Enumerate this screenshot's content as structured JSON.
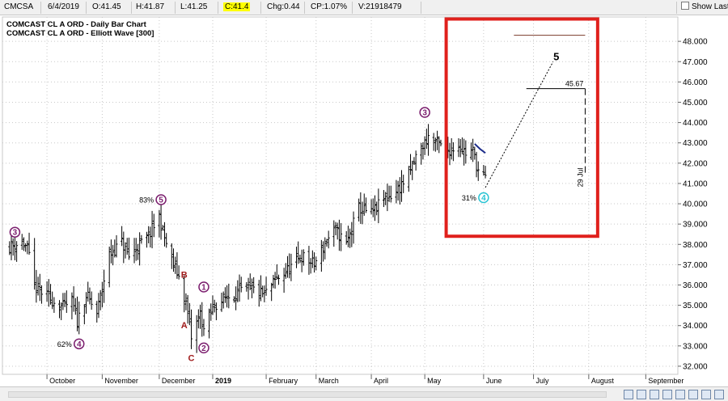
{
  "header": {
    "symbol": "CMCSA",
    "date": "6/4/2019",
    "open": "O:41.45",
    "high": "H:41.87",
    "low": "L:41.25",
    "close": "C:41.4",
    "change": "Chg:0.44",
    "change_pct": "CP:1.07%",
    "volume": "V:21918479",
    "show_last_label": "Show Last"
  },
  "chart_data": {
    "type": "bar",
    "title": "COMCAST CL A ORD - Daily Bar Chart",
    "subtitle": "COMCAST CL A ORD - Elliott Wave [300]",
    "y_ticks": [
      "32.000",
      "33.000",
      "34.000",
      "35.000",
      "36.000",
      "37.000",
      "38.000",
      "39.000",
      "40.000",
      "41.000",
      "42.000",
      "43.000",
      "44.000",
      "45.000",
      "46.000",
      "47.000",
      "48.000"
    ],
    "ylim": [
      31.6,
      49.2
    ],
    "x_ticks": [
      {
        "label": "October",
        "date": "2018-10-01"
      },
      {
        "label": "November",
        "date": "2018-11-01"
      },
      {
        "label": "December",
        "date": "2018-12-03"
      },
      {
        "label": "2019",
        "date": "2019-01-02"
      },
      {
        "label": "February",
        "date": "2019-02-01"
      },
      {
        "label": "March",
        "date": "2019-03-01"
      },
      {
        "label": "April",
        "date": "2019-04-01"
      },
      {
        "label": "May",
        "date": "2019-05-01"
      },
      {
        "label": "June",
        "date": "2019-06-03"
      },
      {
        "label": "July",
        "date": "2019-07-01"
      },
      {
        "label": "August",
        "date": "2019-08-01"
      },
      {
        "label": "September",
        "date": "2019-09-02"
      }
    ],
    "price_path": [
      [
        "2018-09-10",
        37.9
      ],
      [
        "2018-09-17",
        38.1
      ],
      [
        "2018-09-20",
        37.8
      ],
      [
        "2018-09-24",
        35.9
      ],
      [
        "2018-10-03",
        35.3
      ],
      [
        "2018-10-10",
        34.9
      ],
      [
        "2018-10-15",
        35.2
      ],
      [
        "2018-10-18",
        34.2
      ],
      [
        "2018-10-23",
        35.5
      ],
      [
        "2018-10-29",
        34.6
      ],
      [
        "2018-11-05",
        37.5
      ],
      [
        "2018-11-12",
        38.1
      ],
      [
        "2018-11-16",
        37.4
      ],
      [
        "2018-11-21",
        37.9
      ],
      [
        "2018-11-27",
        38.4
      ],
      [
        "2018-12-03",
        39.4
      ],
      [
        "2018-12-05",
        38.6
      ],
      [
        "2018-12-10",
        37.2
      ],
      [
        "2018-12-14",
        36.4
      ],
      [
        "2018-12-18",
        35.1
      ],
      [
        "2018-12-21",
        33.4
      ],
      [
        "2018-12-26",
        34.6
      ],
      [
        "2018-12-28",
        33.8
      ],
      [
        "2019-01-03",
        35.0
      ],
      [
        "2019-01-10",
        35.4
      ],
      [
        "2019-01-17",
        35.7
      ],
      [
        "2019-01-24",
        35.8
      ],
      [
        "2019-01-31",
        35.5
      ],
      [
        "2019-02-07",
        36.3
      ],
      [
        "2019-02-14",
        36.8
      ],
      [
        "2019-02-21",
        37.4
      ],
      [
        "2019-02-28",
        37.0
      ],
      [
        "2019-03-07",
        38.2
      ],
      [
        "2019-03-12",
        38.7
      ],
      [
        "2019-03-18",
        38.0
      ],
      [
        "2019-03-25",
        39.8
      ],
      [
        "2019-04-01",
        39.5
      ],
      [
        "2019-04-08",
        40.2
      ],
      [
        "2019-04-15",
        40.6
      ],
      [
        "2019-04-22",
        41.4
      ],
      [
        "2019-04-26",
        42.3
      ],
      [
        "2019-05-03",
        43.3
      ],
      [
        "2019-05-08",
        43.0
      ],
      [
        "2019-05-13",
        42.6
      ],
      [
        "2019-05-20",
        42.9
      ],
      [
        "2019-05-24",
        42.5
      ],
      [
        "2019-05-28",
        42.6
      ],
      [
        "2019-06-01",
        41.3
      ],
      [
        "2019-06-04",
        41.4
      ]
    ],
    "last_bar": {
      "date": "2019-06-04",
      "open": 41.45,
      "high": 41.87,
      "low": 41.25,
      "close": 41.4
    },
    "overlay_curve": [
      [
        "2019-05-29",
        42.95
      ],
      [
        "2019-06-01",
        42.7
      ],
      [
        "2019-06-04",
        42.5
      ]
    ],
    "waves": [
      {
        "label": "3",
        "date": "2018-09-13",
        "price": 38.6,
        "circled": true,
        "color": "#7b1e6e"
      },
      {
        "label": "4",
        "date": "2018-10-19",
        "price": 33.1,
        "circled": true,
        "color": "#7b1e6e",
        "pct": "62%"
      },
      {
        "label": "5",
        "date": "2018-12-04",
        "price": 40.2,
        "circled": true,
        "color": "#7b1e6e",
        "pct": "83%"
      },
      {
        "label": "B",
        "date": "2018-12-17",
        "price": 36.5,
        "circled": false,
        "color": "#a01c1c"
      },
      {
        "label": "A",
        "date": "2018-12-17",
        "price": 34.0,
        "circled": false,
        "color": "#a01c1c"
      },
      {
        "label": "C",
        "date": "2018-12-21",
        "price": 32.4,
        "circled": false,
        "color": "#a01c1c"
      },
      {
        "label": "1",
        "date": "2018-12-28",
        "price": 35.9,
        "circled": true,
        "color": "#7b1e6e"
      },
      {
        "label": "2",
        "date": "2018-12-28",
        "price": 32.9,
        "circled": true,
        "color": "#7b1e6e"
      },
      {
        "label": "3",
        "date": "2019-05-01",
        "price": 44.5,
        "circled": true,
        "color": "#7b1e6e"
      },
      {
        "label": "4",
        "date": "2019-06-03",
        "price": 40.3,
        "circled": true,
        "color": "#29c4d4",
        "pct": "31%"
      }
    ],
    "projection": {
      "from": [
        "2019-06-04",
        40.8
      ],
      "to": [
        "2019-07-12",
        47.0
      ],
      "label": "5",
      "target_value": "45.67",
      "target_date_label": "29 Jul",
      "upper_level": 48.3
    },
    "highlight_box": {
      "from": "2019-05-13",
      "to": "2019-08-06",
      "price_top": 49.1,
      "price_bottom": 38.4,
      "color": "#e0201c"
    }
  }
}
